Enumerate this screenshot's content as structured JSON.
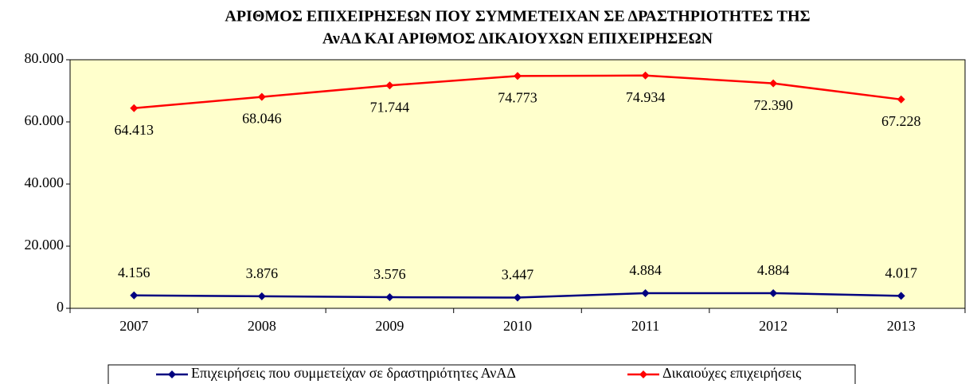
{
  "chart_data": {
    "type": "line",
    "title": [
      "ΑΡΙΘΜΟΣ ΕΠΙΧΕΙΡΗΣΕΩΝ ΠΟΥ ΣΥΜΜΕΤΕΙΧΑΝ ΣΕ ΔΡΑΣΤΗΡΙΟΤΗΤΕΣ ΤΗΣ",
      "ΑνΑΔ ΚΑΙ ΑΡΙΘΜΟΣ ΔΙΚΑΙΟΥΧΩΝ ΕΠΙΧΕΙΡΗΣΕΩΝ"
    ],
    "categories": [
      "2007",
      "2008",
      "2009",
      "2010",
      "2011",
      "2012",
      "2013"
    ],
    "series": [
      {
        "name": "Επιχειρήσεις που συμμετείχαν σε δραστηριότητες ΑνΑΔ",
        "color": "#000080",
        "values": [
          4156,
          3876,
          3576,
          3447,
          4884,
          4884,
          4017
        ],
        "value_labels": [
          "4.156",
          "3.876",
          "3.576",
          "3.447",
          "4.884",
          "4.884",
          "4.017"
        ]
      },
      {
        "name": "Δικαιούχες επιχειρήσεις",
        "color": "#ff0000",
        "values": [
          64413,
          68046,
          71744,
          74773,
          74934,
          72390,
          67228
        ],
        "value_labels": [
          "64.413",
          "68.046",
          "71.744",
          "74.773",
          "74.934",
          "72.390",
          "67.228"
        ]
      }
    ],
    "ylim": [
      0,
      80000
    ],
    "yticks": [
      0,
      {
        "value": 20000,
        "label": "20.000"
      },
      {
        "value": 40000,
        "label": "40.000"
      },
      {
        "value": 60000,
        "label": "60.000"
      },
      {
        "value": 80000,
        "label": "80.000"
      }
    ],
    "grid": false,
    "legend": "bottom",
    "plot_background": "#ffffcc"
  }
}
